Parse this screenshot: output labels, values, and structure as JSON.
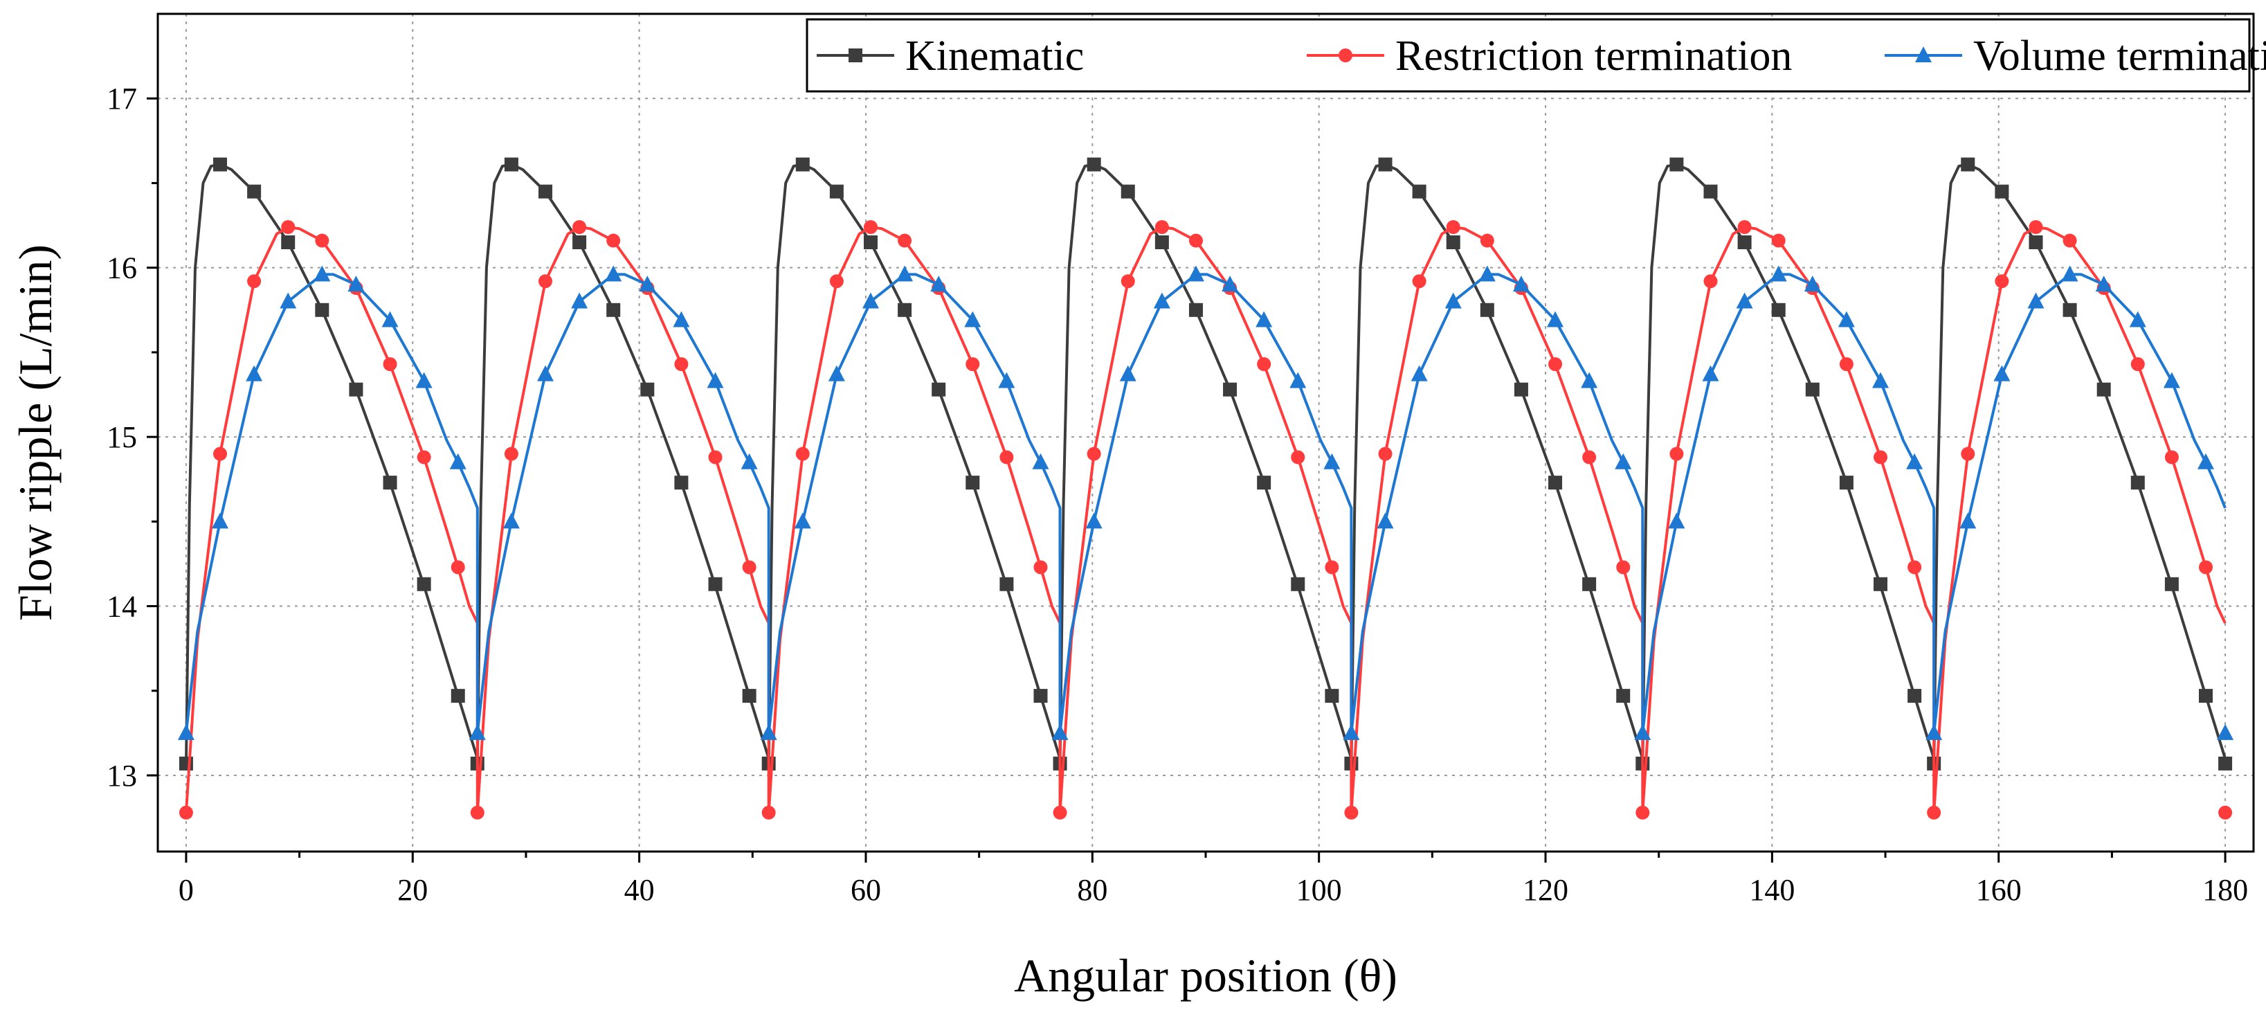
{
  "chart_data": {
    "type": "line",
    "title": "",
    "xlabel": "Angular position (θ)",
    "ylabel": "Flow ripple (L/min)",
    "xlim": [
      -2.5,
      182.5
    ],
    "ylim": [
      12.55,
      17.5
    ],
    "xticks": [
      0,
      20,
      40,
      60,
      80,
      100,
      120,
      140,
      160,
      180
    ],
    "yticks": [
      13,
      14,
      15,
      16,
      17
    ],
    "grid": true,
    "legend_position": "top-right",
    "period": 25.714,
    "series": [
      {
        "name": "Kinematic",
        "color": "#3c3c3c",
        "marker": "square",
        "phase_x": [
          0,
          0.3,
          0.8,
          1.5,
          2.2,
          3,
          4,
          6,
          9,
          12,
          15,
          18,
          21,
          24,
          25.714
        ],
        "phase_y": [
          13.05,
          14.6,
          16.0,
          16.5,
          16.6,
          16.61,
          16.58,
          16.45,
          16.15,
          15.75,
          15.28,
          14.73,
          14.12,
          13.47,
          13.1
        ],
        "marker_x": [
          0,
          3,
          6,
          9,
          12,
          15,
          18,
          21,
          24
        ],
        "marker_y": [
          13.07,
          16.61,
          16.45,
          16.15,
          15.75,
          15.28,
          14.73,
          14.13,
          13.47
        ]
      },
      {
        "name": "Restriction termination",
        "color": "#ff3b3b",
        "marker": "circle",
        "phase_x": [
          0,
          1,
          3,
          6,
          8,
          9,
          10,
          12,
          15,
          18,
          21,
          23,
          24,
          25,
          25.714
        ],
        "phase_y": [
          12.78,
          13.8,
          14.9,
          15.92,
          16.2,
          16.24,
          16.23,
          16.16,
          15.88,
          15.43,
          14.88,
          14.45,
          14.23,
          14.0,
          13.9
        ],
        "marker_x": [
          0,
          3,
          6,
          9,
          12,
          15,
          18,
          21,
          24
        ],
        "marker_y": [
          12.78,
          14.9,
          15.92,
          16.24,
          16.16,
          15.88,
          15.43,
          14.88,
          14.23
        ]
      },
      {
        "name": "Volume termination",
        "color": "#1e78d2",
        "marker": "triangle",
        "phase_x": [
          0,
          1,
          3,
          6,
          9,
          12,
          13,
          15,
          18,
          21,
          23,
          24,
          25,
          25.714
        ],
        "phase_y": [
          13.25,
          13.85,
          14.5,
          15.37,
          15.8,
          15.96,
          15.96,
          15.9,
          15.69,
          15.33,
          14.98,
          14.85,
          14.7,
          14.58
        ],
        "marker_x": [
          0,
          3,
          6,
          9,
          12,
          15,
          18,
          21,
          24
        ],
        "marker_y": [
          13.25,
          14.5,
          15.37,
          15.8,
          15.96,
          15.9,
          15.69,
          15.33,
          14.85
        ]
      }
    ]
  }
}
